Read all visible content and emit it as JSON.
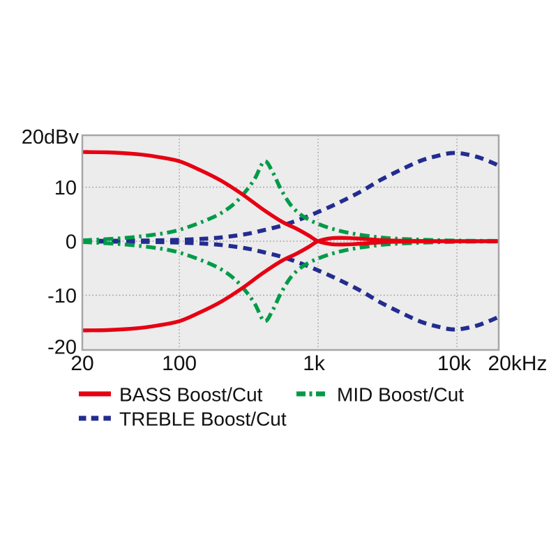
{
  "figure": {
    "y_axis_label": "20dBv"
  },
  "chart_data": {
    "type": "line",
    "title": "",
    "x_scale": "log",
    "x_unit": "Hz",
    "y_unit": "dBv",
    "xlim": [
      20,
      20000
    ],
    "ylim": [
      -20,
      20
    ],
    "grid": true,
    "y_axis_label": "20dBv",
    "y_ticks": [
      {
        "value": 10,
        "label": "10"
      },
      {
        "value": 0,
        "label": "0"
      },
      {
        "value": -10,
        "label": "-10"
      },
      {
        "value": -20,
        "label": "-20"
      }
    ],
    "x_ticks": [
      {
        "value": 20,
        "label": "20"
      },
      {
        "value": 100,
        "label": "100"
      },
      {
        "value": 1000,
        "label": "1k"
      },
      {
        "value": 10000,
        "label": "10k"
      },
      {
        "value": 20000,
        "label": "20kHz"
      }
    ],
    "gridlines": {
      "horizontal_db": [
        10,
        0,
        -10
      ],
      "vertical_hz": [
        100,
        1000,
        10000
      ]
    },
    "colors": {
      "bass": "#e60012",
      "mid": "#009b48",
      "treble": "#232c8f",
      "plot_background": "#ececec",
      "plot_border": "#a6a6a6",
      "grid": "#9b9b9b"
    },
    "series": [
      {
        "id": "bass-boost",
        "name": "BASS Boost",
        "color": "#e60012",
        "line": "solid",
        "points": [
          [
            20,
            16.5
          ],
          [
            30,
            16.45
          ],
          [
            50,
            16.1
          ],
          [
            70,
            15.6
          ],
          [
            100,
            14.8
          ],
          [
            140,
            13.2
          ],
          [
            200,
            11.2
          ],
          [
            280,
            8.8
          ],
          [
            400,
            5.9
          ],
          [
            550,
            3.6
          ],
          [
            700,
            2.3
          ],
          [
            850,
            1.1
          ],
          [
            1000,
            0
          ],
          [
            1250,
            -0.55
          ],
          [
            1600,
            -0.6
          ],
          [
            2200,
            -0.4
          ],
          [
            3200,
            -0.15
          ],
          [
            5000,
            -0.05
          ],
          [
            10000,
            0
          ],
          [
            20000,
            0
          ]
        ]
      },
      {
        "id": "bass-cut",
        "name": "BASS Cut",
        "color": "#e60012",
        "line": "solid",
        "points": [
          [
            20,
            -16.5
          ],
          [
            30,
            -16.45
          ],
          [
            50,
            -16.1
          ],
          [
            70,
            -15.6
          ],
          [
            100,
            -14.8
          ],
          [
            140,
            -13.2
          ],
          [
            200,
            -11.2
          ],
          [
            280,
            -8.8
          ],
          [
            400,
            -5.9
          ],
          [
            550,
            -3.6
          ],
          [
            700,
            -2.3
          ],
          [
            850,
            -1.1
          ],
          [
            1000,
            0
          ],
          [
            1250,
            0.55
          ],
          [
            1600,
            0.6
          ],
          [
            2200,
            0.4
          ],
          [
            3200,
            0.15
          ],
          [
            5000,
            0.05
          ],
          [
            10000,
            0
          ],
          [
            20000,
            0
          ]
        ]
      },
      {
        "id": "mid-boost",
        "name": "MID Boost",
        "color": "#009b48",
        "line": "dashdot",
        "points": [
          [
            20,
            0.15
          ],
          [
            40,
            0.6
          ],
          [
            70,
            1.3
          ],
          [
            100,
            2.1
          ],
          [
            150,
            3.7
          ],
          [
            200,
            5.2
          ],
          [
            250,
            7.0
          ],
          [
            300,
            9.2
          ],
          [
            350,
            11.6
          ],
          [
            410,
            14.8
          ],
          [
            470,
            12.8
          ],
          [
            540,
            9.6
          ],
          [
            640,
            6.6
          ],
          [
            780,
            4.6
          ],
          [
            1000,
            3.2
          ],
          [
            1300,
            2.2
          ],
          [
            1700,
            1.5
          ],
          [
            2400,
            0.9
          ],
          [
            3500,
            0.5
          ],
          [
            6000,
            0.25
          ],
          [
            11000,
            0.1
          ],
          [
            20000,
            0.05
          ]
        ]
      },
      {
        "id": "mid-cut",
        "name": "MID Cut",
        "color": "#009b48",
        "line": "dashdot",
        "points": [
          [
            20,
            -0.15
          ],
          [
            40,
            -0.6
          ],
          [
            70,
            -1.3
          ],
          [
            100,
            -2.1
          ],
          [
            150,
            -3.7
          ],
          [
            200,
            -5.2
          ],
          [
            250,
            -7.0
          ],
          [
            300,
            -9.2
          ],
          [
            350,
            -11.6
          ],
          [
            410,
            -14.8
          ],
          [
            470,
            -12.8
          ],
          [
            540,
            -9.6
          ],
          [
            640,
            -6.6
          ],
          [
            780,
            -4.6
          ],
          [
            1000,
            -3.2
          ],
          [
            1300,
            -2.2
          ],
          [
            1700,
            -1.5
          ],
          [
            2400,
            -0.9
          ],
          [
            3500,
            -0.5
          ],
          [
            6000,
            -0.25
          ],
          [
            11000,
            -0.1
          ],
          [
            20000,
            -0.05
          ]
        ]
      },
      {
        "id": "treble-boost",
        "name": "TREBLE Boost",
        "color": "#232c8f",
        "line": "dashed",
        "points": [
          [
            20,
            0.05
          ],
          [
            50,
            0.1
          ],
          [
            100,
            0.25
          ],
          [
            150,
            0.45
          ],
          [
            200,
            0.7
          ],
          [
            300,
            1.3
          ],
          [
            400,
            2.0
          ],
          [
            550,
            2.9
          ],
          [
            750,
            4.1
          ],
          [
            1000,
            5.4
          ],
          [
            1400,
            7.1
          ],
          [
            2000,
            9.1
          ],
          [
            2800,
            11.3
          ],
          [
            4000,
            13.3
          ],
          [
            5500,
            14.9
          ],
          [
            7000,
            15.7
          ],
          [
            9000,
            16.3
          ],
          [
            11000,
            16.2
          ],
          [
            14000,
            15.6
          ],
          [
            17000,
            14.8
          ],
          [
            20000,
            14.0
          ]
        ]
      },
      {
        "id": "treble-cut",
        "name": "TREBLE Cut",
        "color": "#232c8f",
        "line": "dashed",
        "points": [
          [
            20,
            -0.05
          ],
          [
            50,
            -0.1
          ],
          [
            100,
            -0.25
          ],
          [
            150,
            -0.45
          ],
          [
            200,
            -0.7
          ],
          [
            300,
            -1.3
          ],
          [
            400,
            -2.0
          ],
          [
            550,
            -2.9
          ],
          [
            750,
            -4.1
          ],
          [
            1000,
            -5.4
          ],
          [
            1400,
            -7.1
          ],
          [
            2000,
            -9.1
          ],
          [
            2800,
            -11.3
          ],
          [
            4000,
            -13.3
          ],
          [
            5500,
            -14.9
          ],
          [
            7000,
            -15.7
          ],
          [
            9000,
            -16.3
          ],
          [
            11000,
            -16.2
          ],
          [
            14000,
            -15.6
          ],
          [
            17000,
            -14.8
          ],
          [
            20000,
            -14.0
          ]
        ]
      }
    ],
    "legend_position": "below",
    "legend_entries": [
      {
        "id": "bass",
        "label": "BASS Boost/Cut",
        "color": "#e60012",
        "line": "solid"
      },
      {
        "id": "mid",
        "label": "MID Boost/Cut",
        "color": "#009b48",
        "line": "dashdot"
      },
      {
        "id": "treble",
        "label": "TREBLE Boost/Cut",
        "color": "#232c8f",
        "line": "dashed"
      }
    ]
  }
}
